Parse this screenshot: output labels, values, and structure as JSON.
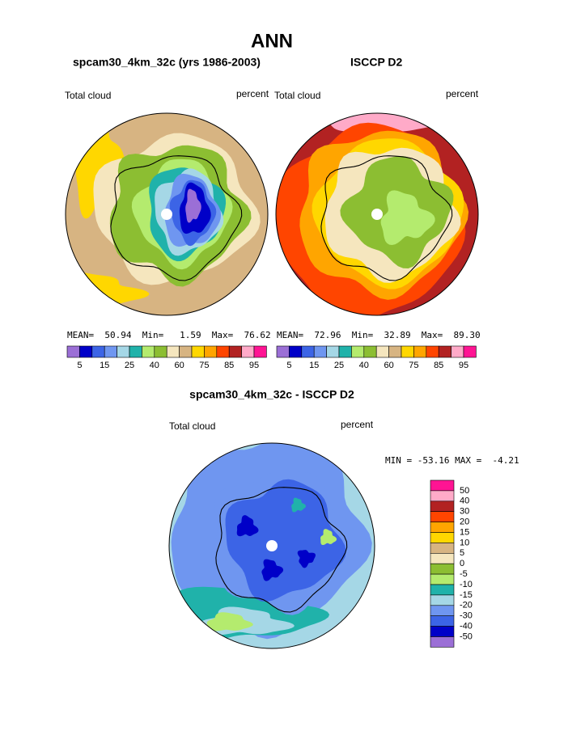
{
  "title": "ANN",
  "panels": [
    {
      "title": "spcam30_4km_32c (yrs 1986-2003)",
      "field": "Total cloud",
      "units": "percent",
      "stats": "MEAN=  50.94  Min=   1.59  Max=  76.62"
    },
    {
      "title": "ISCCP D2",
      "field": "Total cloud",
      "units": "percent",
      "stats": "MEAN=  72.96  Min=  32.89  Max=  89.30"
    },
    {
      "title": "spcam30_4km_32c - ISCCP D2",
      "field": "Total cloud",
      "units": "percent",
      "stats": "MIN = -53.16 MAX =  -4.21"
    }
  ],
  "colorbars": [
    {
      "colors": [
        "#9b6fd6",
        "#0000c8",
        "#3c64e6",
        "#6f96f0",
        "#a5d7e6",
        "#20b2aa",
        "#b4eb6e",
        "#8cbe32",
        "#f5e6be",
        "#d7b482",
        "#ffd700",
        "#ffa500",
        "#ff4500",
        "#b22222",
        "#ffaac8",
        "#ff1493"
      ],
      "labels": [
        "5",
        "15",
        "25",
        "40",
        "60",
        "75",
        "85",
        "95"
      ]
    },
    {
      "colors": [
        "#9b6fd6",
        "#0000c8",
        "#3c64e6",
        "#6f96f0",
        "#a5d7e6",
        "#20b2aa",
        "#b4eb6e",
        "#8cbe32",
        "#f5e6be",
        "#d7b482",
        "#ffd700",
        "#ffa500",
        "#ff4500",
        "#b22222",
        "#ffaac8",
        "#ff1493"
      ],
      "labels": [
        "5",
        "15",
        "25",
        "40",
        "60",
        "75",
        "85",
        "95"
      ]
    },
    {
      "colors": [
        "#ff1493",
        "#ffaac8",
        "#b22222",
        "#ff4500",
        "#ffa500",
        "#ffd700",
        "#d7b482",
        "#f5e6be",
        "#8cbe32",
        "#b4eb6e",
        "#20b2aa",
        "#a5d7e6",
        "#6f96f0",
        "#3c64e6",
        "#0000c8",
        "#9b6fd6"
      ],
      "labels": [
        "50",
        "40",
        "30",
        "20",
        "15",
        "10",
        "5",
        "0",
        "-5",
        "-10",
        "-15",
        "-20",
        "-30",
        "-40",
        "-50"
      ]
    }
  ]
}
